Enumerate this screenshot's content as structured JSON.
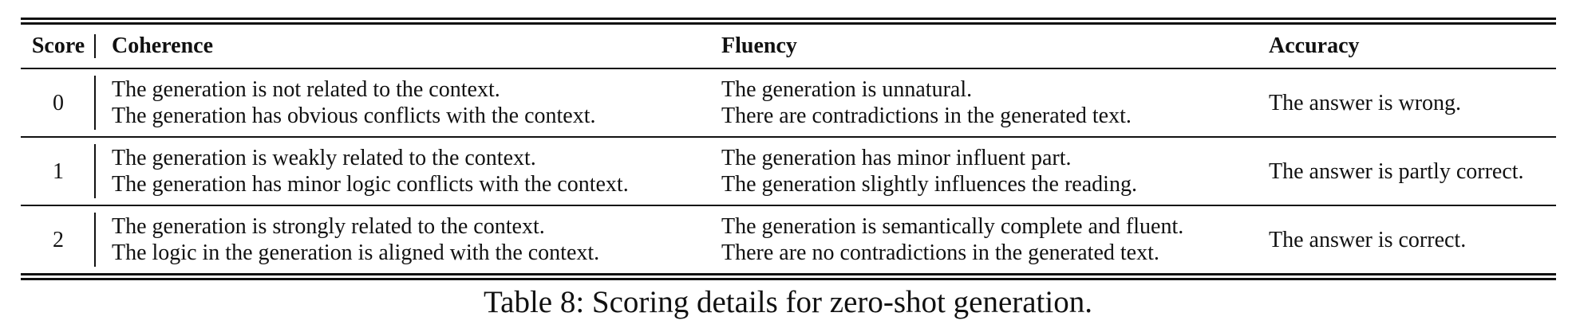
{
  "table": {
    "headers": {
      "score": "Score",
      "coherence": "Coherence",
      "fluency": "Fluency",
      "accuracy": "Accuracy"
    },
    "rows": [
      {
        "score": "0",
        "coherence": [
          "The generation is not related to the context.",
          "The generation has obvious conflicts with the context."
        ],
        "fluency": [
          "The generation is unnatural.",
          "There are contradictions in the generated text."
        ],
        "accuracy": "The answer is wrong."
      },
      {
        "score": "1",
        "coherence": [
          "The generation is weakly related to the context.",
          "The generation has minor logic conflicts with the context."
        ],
        "fluency": [
          "The generation has minor influent part.",
          "The generation slightly influences the reading."
        ],
        "accuracy": "The answer is partly correct."
      },
      {
        "score": "2",
        "coherence": [
          "The generation is strongly related to the context.",
          "The logic in the generation is aligned with the context."
        ],
        "fluency": [
          "The generation is semantically complete and fluent.",
          "There are no contradictions in the generated text."
        ],
        "accuracy": "The answer is correct."
      }
    ]
  },
  "caption": "Table 8: Scoring details for zero-shot generation."
}
